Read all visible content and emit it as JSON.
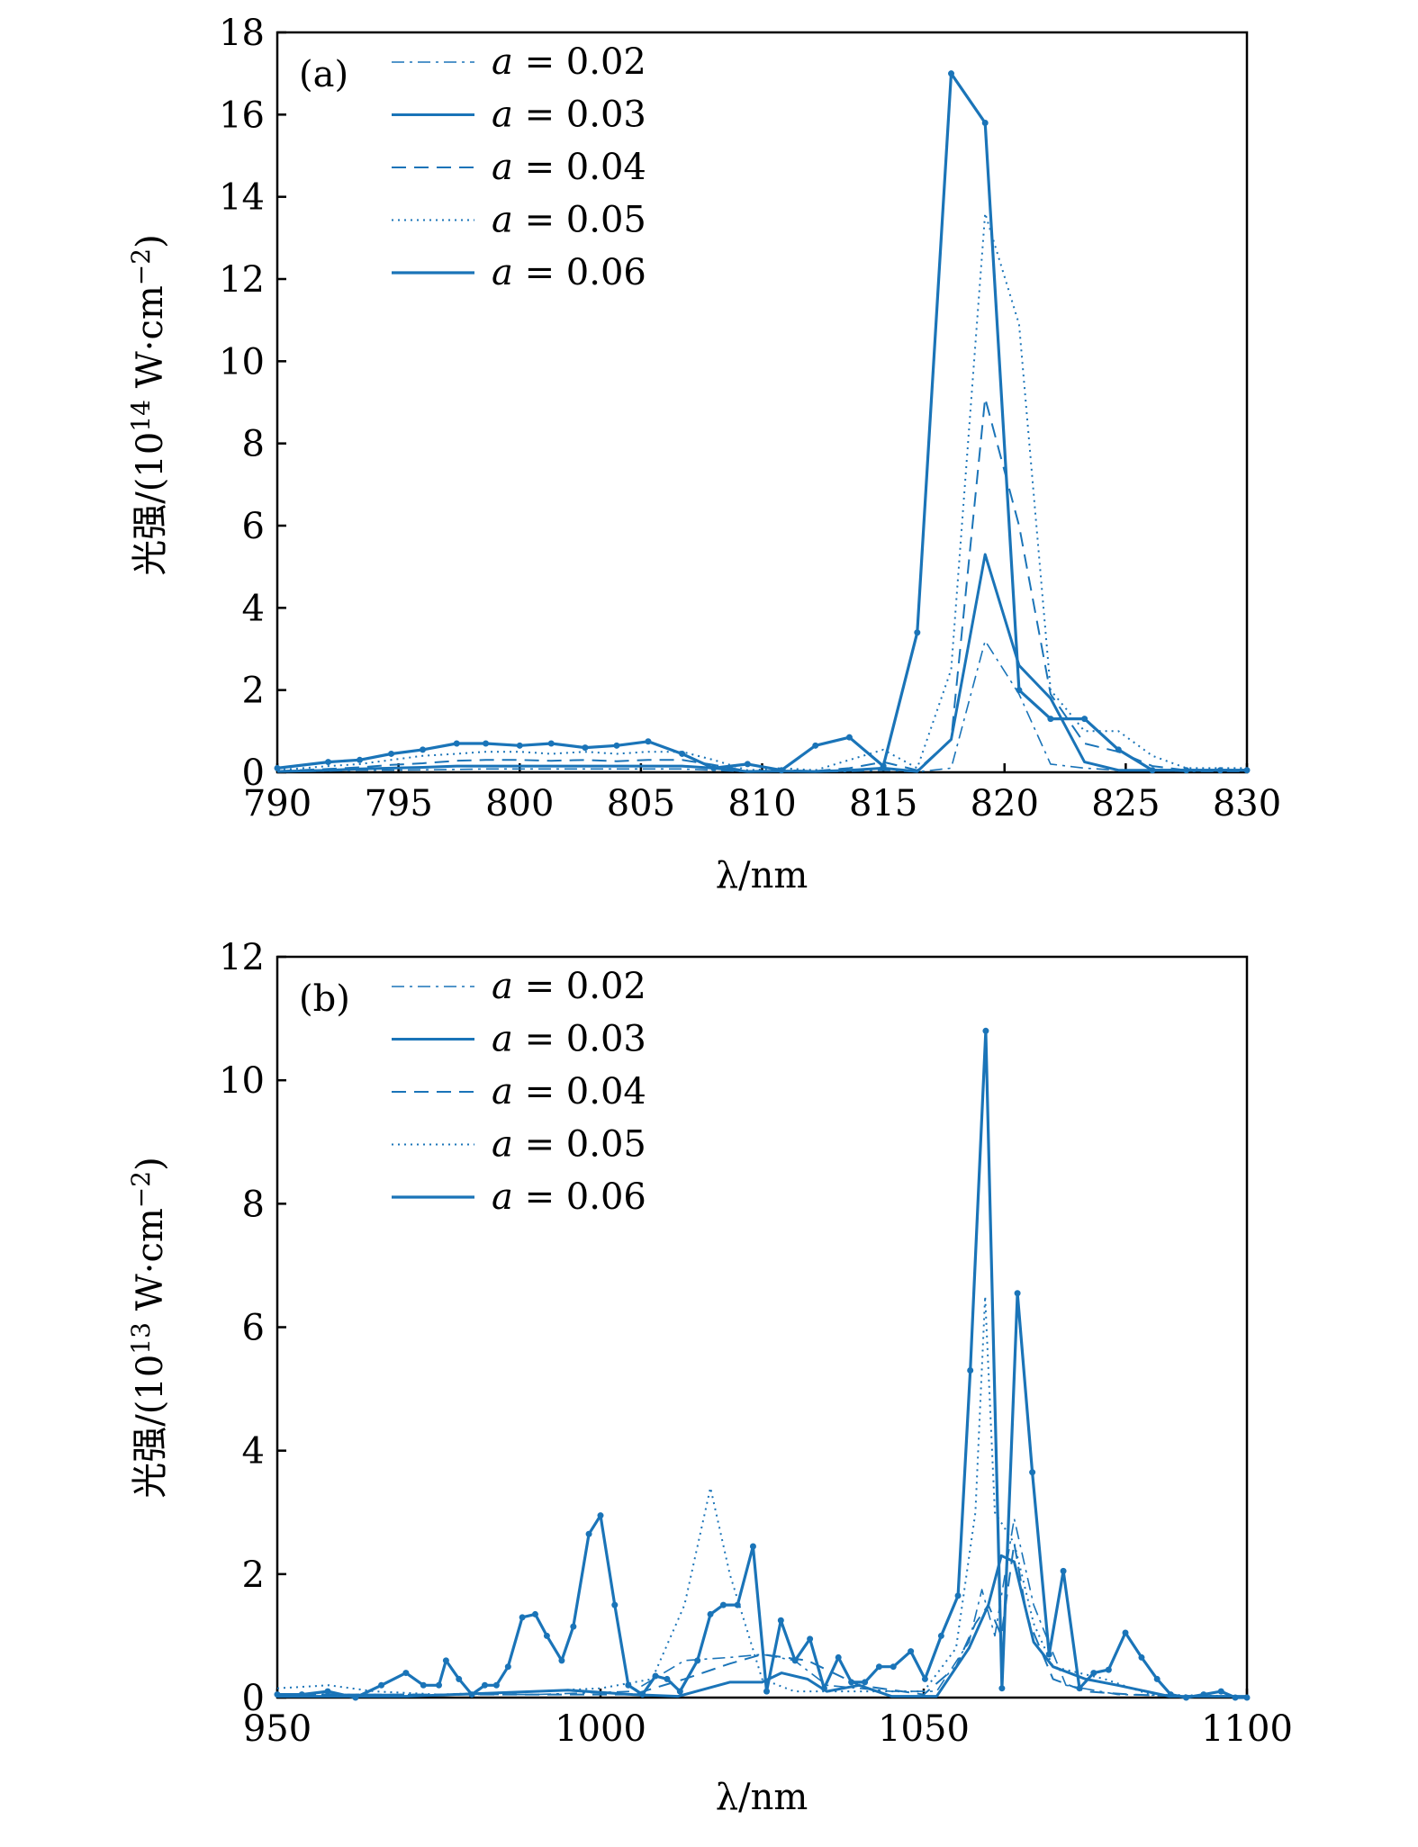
{
  "colors": {
    "line": "#1a74b8",
    "axis": "#000000"
  },
  "chart_data": [
    {
      "type": "line",
      "panel_label": "(a)",
      "xlabel": "λ/nm",
      "ylabel": {
        "prefix": "光强/(10",
        "exp": "14",
        "mid": " W·cm",
        "exp2": "−2",
        "suffix": ")"
      },
      "xlim": [
        790,
        830
      ],
      "ylim": [
        0,
        18
      ],
      "xticks": [
        790,
        795,
        800,
        805,
        810,
        815,
        820,
        825,
        830
      ],
      "yticks": [
        0,
        2,
        4,
        6,
        8,
        10,
        12,
        14,
        16,
        18
      ],
      "legend_placement": "top-left",
      "x": [
        790,
        792.1,
        793.4,
        794.7,
        796.0,
        797.4,
        798.6,
        800.0,
        801.3,
        802.7,
        804.0,
        805.3,
        806.7,
        808.0,
        809.4,
        810.8,
        812.2,
        813.6,
        815.0,
        816.4,
        817.8,
        819.2,
        820.6,
        821.9,
        823.3,
        824.7,
        826.1,
        827.5,
        828.9,
        830
      ],
      "series": [
        {
          "name": "a = 0.02",
          "style": "dashdot",
          "values": [
            0.01,
            0.03,
            0.05,
            0.05,
            0.06,
            0.07,
            0.08,
            0.08,
            0.08,
            0.08,
            0.08,
            0.08,
            0.08,
            0.05,
            0.01,
            0.02,
            0.01,
            0.02,
            0.05,
            0.01,
            0.1,
            3.2,
            1.9,
            0.2,
            0.1,
            0.05,
            0.05,
            0.02,
            0.02,
            0.02
          ]
        },
        {
          "name": "a = 0.03",
          "style": "solid",
          "values": [
            0.02,
            0.05,
            0.08,
            0.1,
            0.12,
            0.15,
            0.15,
            0.15,
            0.15,
            0.15,
            0.15,
            0.15,
            0.15,
            0.1,
            0.02,
            0.03,
            0.02,
            0.05,
            0.1,
            0.02,
            0.8,
            5.3,
            2.6,
            1.8,
            0.25,
            0.05,
            0.05,
            0.05,
            0.05,
            0.05
          ]
        },
        {
          "name": "a = 0.04",
          "style": "dashed",
          "values": [
            0.03,
            0.08,
            0.12,
            0.18,
            0.22,
            0.28,
            0.3,
            0.3,
            0.28,
            0.3,
            0.27,
            0.3,
            0.3,
            0.18,
            0.03,
            0.05,
            0.03,
            0.1,
            0.25,
            0.05,
            0.8,
            9.1,
            6.0,
            1.9,
            0.7,
            0.5,
            0.15,
            0.05,
            0.05,
            0.05
          ]
        },
        {
          "name": "a = 0.05",
          "style": "dotted",
          "values": [
            0.05,
            0.15,
            0.2,
            0.3,
            0.4,
            0.45,
            0.5,
            0.5,
            0.45,
            0.5,
            0.45,
            0.5,
            0.5,
            0.3,
            0.05,
            0.1,
            0.05,
            0.3,
            0.55,
            0.1,
            2.5,
            13.6,
            10.9,
            2.0,
            1.0,
            1.0,
            0.4,
            0.1,
            0.1,
            0.1
          ]
        },
        {
          "name": "a = 0.06",
          "style": "solid-markers",
          "values": [
            0.1,
            0.25,
            0.3,
            0.45,
            0.55,
            0.7,
            0.7,
            0.65,
            0.7,
            0.6,
            0.65,
            0.75,
            0.45,
            0.1,
            0.2,
            0.05,
            0.65,
            0.85,
            0.15,
            3.4,
            17.0,
            15.8,
            2.0,
            1.3,
            1.3,
            0.55,
            0.05,
            0.05,
            0.05,
            0.05
          ]
        }
      ]
    },
    {
      "type": "line",
      "panel_label": "(b)",
      "xlabel": "λ/nm",
      "ylabel": {
        "prefix": "光强/(10",
        "exp": "13",
        "mid": " W·cm",
        "exp2": "−2",
        "suffix": ")"
      },
      "xlim": [
        950,
        1100
      ],
      "ylim": [
        0,
        12
      ],
      "xticks": [
        950,
        1000,
        1050,
        1100
      ],
      "yticks": [
        0,
        2,
        4,
        6,
        8,
        10,
        12
      ],
      "legend_placement": "top-left",
      "series": [
        {
          "name": "a = 0.02",
          "style": "dashdot",
          "x": [
            950,
            970,
            990,
            1005,
            1013,
            1020,
            1025,
            1030,
            1035,
            1045,
            1052,
            1057,
            1059,
            1061,
            1064,
            1067,
            1072,
            1080,
            1090,
            1100
          ],
          "values": [
            0.05,
            0.05,
            0.05,
            0.1,
            0.6,
            0.65,
            0.7,
            0.6,
            0.2,
            0.1,
            0.1,
            0.9,
            1.75,
            1.0,
            2.9,
            1.5,
            0.2,
            0.05,
            0.03,
            0.02
          ]
        },
        {
          "name": "a = 0.03",
          "style": "solid",
          "x": [
            950,
            970,
            985,
            995,
            1005,
            1012,
            1020,
            1025,
            1028,
            1032,
            1035,
            1040,
            1045,
            1052,
            1057,
            1060,
            1062,
            1064,
            1067,
            1070,
            1075,
            1080,
            1088,
            1100
          ],
          "values": [
            0.02,
            0.02,
            0.08,
            0.12,
            0.05,
            0.02,
            0.25,
            0.25,
            0.4,
            0.3,
            0.1,
            0.2,
            0.02,
            0.02,
            0.8,
            1.5,
            2.3,
            2.2,
            0.9,
            0.5,
            0.3,
            0.2,
            0.02,
            0.02
          ]
        },
        {
          "name": "a = 0.04",
          "style": "dashed",
          "x": [
            950,
            970,
            990,
            1005,
            1013,
            1020,
            1025,
            1032,
            1040,
            1050,
            1055,
            1058,
            1060,
            1062,
            1064,
            1066,
            1070,
            1075,
            1082,
            1090,
            1100
          ],
          "values": [
            0.05,
            0.05,
            0.05,
            0.05,
            0.3,
            0.55,
            0.7,
            0.6,
            0.2,
            0.05,
            0.5,
            1.2,
            1.5,
            1.0,
            2.5,
            1.3,
            0.3,
            0.1,
            0.05,
            0.02,
            0.02
          ]
        },
        {
          "name": "a = 0.05",
          "style": "dotted",
          "x": [
            950,
            958,
            965,
            975,
            990,
            1000,
            1008,
            1013,
            1017,
            1020,
            1025,
            1030,
            1040,
            1050,
            1055,
            1058,
            1059.5,
            1061,
            1064,
            1067,
            1070,
            1078,
            1085,
            1100
          ],
          "values": [
            0.15,
            0.2,
            0.1,
            0.05,
            0.1,
            0.15,
            0.3,
            1.5,
            3.4,
            2.0,
            0.3,
            0.1,
            0.1,
            0.1,
            0.8,
            3.0,
            6.5,
            3.0,
            2.5,
            1.2,
            0.5,
            0.3,
            0.05,
            0.02
          ]
        },
        {
          "name": "a = 0.06",
          "style": "solid-markers",
          "x": [
            950.0,
            953.8,
            957.8,
            962.1,
            966.1,
            969.9,
            972.6,
            975.0,
            976.1,
            978.1,
            980.1,
            982.1,
            983.9,
            985.7,
            987.9,
            989.9,
            991.7,
            994.0,
            995.8,
            998.2,
            1000.0,
            1002.2,
            1004.3,
            1006.5,
            1008.5,
            1010.3,
            1012.3,
            1015.0,
            1017.0,
            1019.0,
            1021.2,
            1023.6,
            1025.7,
            1027.9,
            1030.1,
            1032.4,
            1034.6,
            1036.8,
            1038.8,
            1040.9,
            1043.1,
            1045.3,
            1048.0,
            1050.2,
            1052.7,
            1055.3,
            1057.2,
            1059.6,
            1062.1,
            1064.5,
            1066.8,
            1069.4,
            1071.6,
            1074.1,
            1076.3,
            1078.6,
            1081.2,
            1083.7,
            1086.1,
            1088.2,
            1090.6,
            1093.3,
            1096.0,
            1098.2,
            1100
          ],
          "values": [
            0.05,
            0.05,
            0.1,
            0.0,
            0.2,
            0.4,
            0.2,
            0.2,
            0.6,
            0.3,
            0.05,
            0.2,
            0.2,
            0.5,
            1.3,
            1.35,
            1.0,
            0.6,
            1.15,
            2.65,
            2.95,
            1.5,
            0.2,
            0.05,
            0.35,
            0.3,
            0.1,
            0.6,
            1.35,
            1.5,
            1.5,
            2.45,
            0.1,
            1.25,
            0.6,
            0.95,
            0.15,
            0.65,
            0.25,
            0.25,
            0.5,
            0.5,
            0.75,
            0.3,
            1.0,
            1.65,
            5.3,
            10.8,
            0.15,
            6.55,
            3.65,
            0.7,
            2.05,
            0.15,
            0.4,
            0.45,
            1.05,
            0.65,
            0.3,
            0.05,
            0.0,
            0.05,
            0.1,
            0.0,
            0.0
          ]
        }
      ]
    }
  ]
}
